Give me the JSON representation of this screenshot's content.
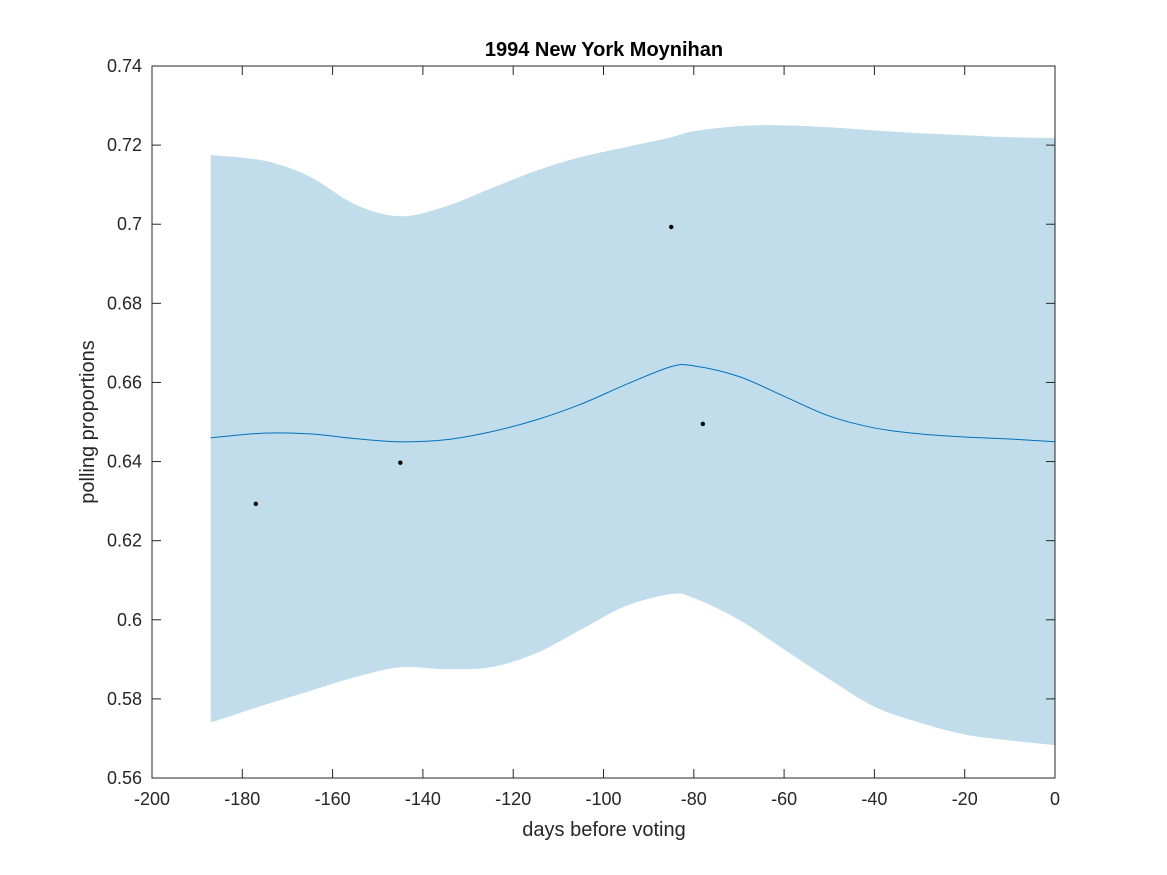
{
  "chart_data": {
    "type": "area",
    "title": "1994 New York Moynihan",
    "xlabel": "days before voting",
    "ylabel": "polling proportions",
    "xlim": [
      -200,
      0
    ],
    "ylim": [
      0.56,
      0.74
    ],
    "xticks": [
      -200,
      -180,
      -160,
      -140,
      -120,
      -100,
      -80,
      -60,
      -40,
      -20,
      0
    ],
    "yticks": [
      0.56,
      0.58,
      0.6,
      0.62,
      0.64,
      0.66,
      0.68,
      0.7,
      0.72,
      0.74
    ],
    "xtick_labels": [
      "-200",
      "-180",
      "-160",
      "-140",
      "-120",
      "-100",
      "-80",
      "-60",
      "-40",
      "-20",
      "0"
    ],
    "ytick_labels": [
      "0.56",
      "0.58",
      "0.6",
      "0.62",
      "0.64",
      "0.66",
      "0.68",
      "0.7",
      "0.72",
      "0.74"
    ],
    "grid": false,
    "band": {
      "x": [
        -187,
        -175,
        -165,
        -155,
        -145,
        -135,
        -125,
        -115,
        -105,
        -95,
        -85,
        -80,
        -70,
        -60,
        -50,
        -40,
        -30,
        -20,
        -10,
        0
      ],
      "upper": [
        0.7175,
        0.716,
        0.712,
        0.705,
        0.702,
        0.7045,
        0.709,
        0.7135,
        0.717,
        0.7195,
        0.722,
        0.7235,
        0.7248,
        0.725,
        0.7245,
        0.7237,
        0.723,
        0.7225,
        0.722,
        0.7218
      ],
      "lower": [
        0.574,
        0.5785,
        0.582,
        0.5855,
        0.588,
        0.5875,
        0.588,
        0.5915,
        0.5975,
        0.6035,
        0.6065,
        0.6055,
        0.6,
        0.5925,
        0.585,
        0.578,
        0.574,
        0.571,
        0.5695,
        0.5683
      ]
    },
    "series": [
      {
        "type": "line",
        "x": [
          -187,
          -175,
          -165,
          -155,
          -145,
          -135,
          -125,
          -115,
          -105,
          -95,
          -85,
          -80,
          -70,
          -60,
          -50,
          -40,
          -30,
          -20,
          -10,
          0
        ],
        "values": [
          0.646,
          0.6472,
          0.647,
          0.6458,
          0.645,
          0.6455,
          0.6475,
          0.6505,
          0.6545,
          0.6595,
          0.664,
          0.6642,
          0.6615,
          0.6565,
          0.6515,
          0.6485,
          0.647,
          0.6462,
          0.6457,
          0.645
        ]
      },
      {
        "type": "scatter",
        "x": [
          -177,
          -145,
          -85,
          -78
        ],
        "values": [
          0.6293,
          0.6397,
          0.6993,
          0.6495
        ]
      }
    ],
    "colors": {
      "band": "#c1dcea",
      "line": "#0072bd",
      "points": "#000000",
      "axes": "#262626"
    }
  }
}
